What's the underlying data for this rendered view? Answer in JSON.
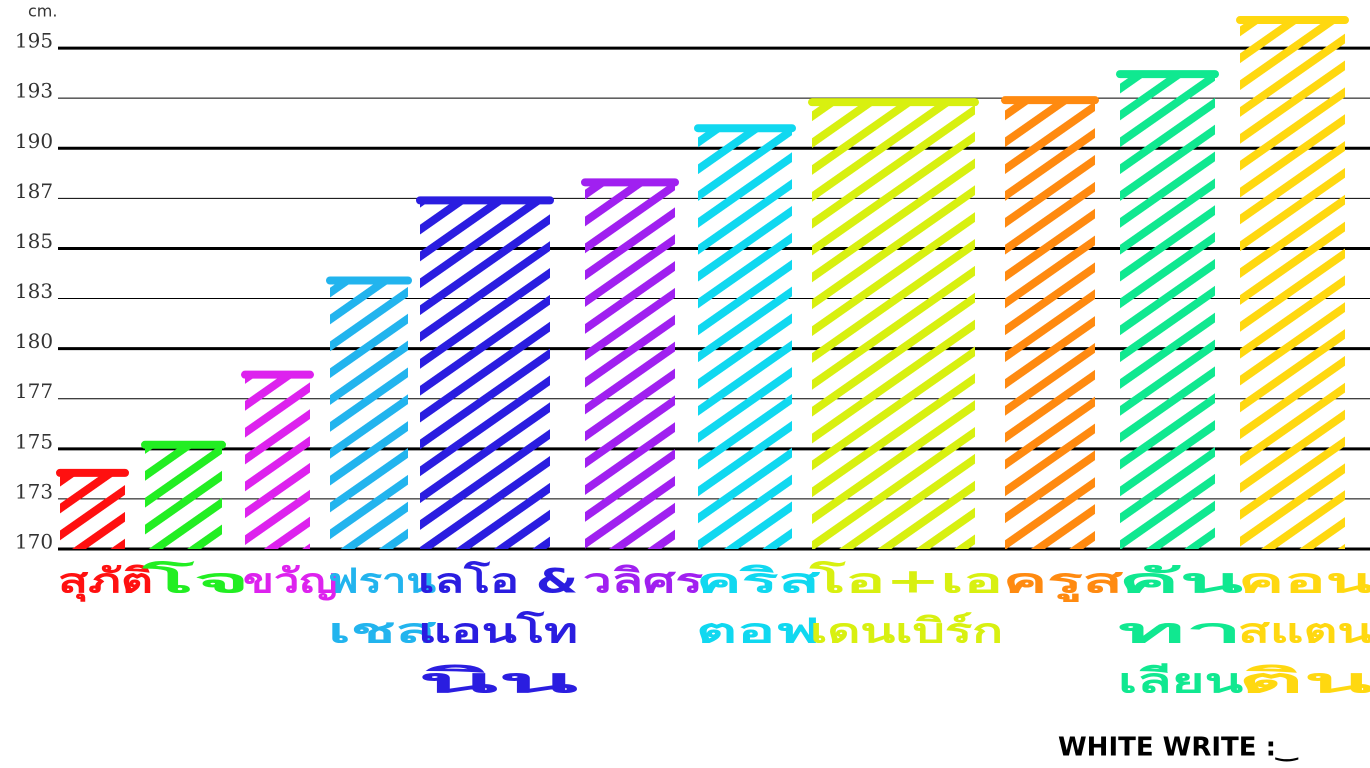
{
  "chart_data": {
    "type": "bar",
    "y_unit": "cm.",
    "categories": [
      [
        "สุภัติ"
      ],
      [
        "โจ"
      ],
      [
        "ขวัญ"
      ],
      [
        "ฟราน",
        "เชส"
      ],
      [
        "เลโอ &",
        "แอนโท",
        "นิน"
      ],
      [
        "วลิศร"
      ],
      [
        "คริส",
        "ตอฟ"
      ],
      [
        "โอ+เอ",
        "เดนเบิร์ก"
      ],
      [
        "ครูส"
      ],
      [
        "คัน",
        "ทา",
        "เลียน"
      ],
      [
        "คอน",
        "สแตน",
        "ติน"
      ]
    ],
    "values": [
      173.8,
      175.2,
      178.7,
      183.4,
      187.4,
      188.3,
      191,
      192.3,
      192.4,
      193.7,
      196.4
    ],
    "colors": [
      "#ff1010",
      "#22ee22",
      "#dd22ee",
      "#22b4ee",
      "#2a1de0",
      "#a020f0",
      "#10d8f0",
      "#d8f010",
      "#ff8a10",
      "#10e890",
      "#ffd810"
    ],
    "ylim": [
      170,
      197.4
    ],
    "yticks": [
      170,
      {
        "value": 172.5,
        "label": "173"
      },
      175,
      {
        "value": 177.5,
        "label": "177"
      },
      180,
      {
        "value": 182.5,
        "label": "183"
      },
      185,
      {
        "value": 187.5,
        "label": "187"
      },
      190,
      {
        "value": 192.5,
        "label": "193"
      },
      195
    ],
    "grid": true,
    "footer": "WHITE WRITE :‿"
  }
}
